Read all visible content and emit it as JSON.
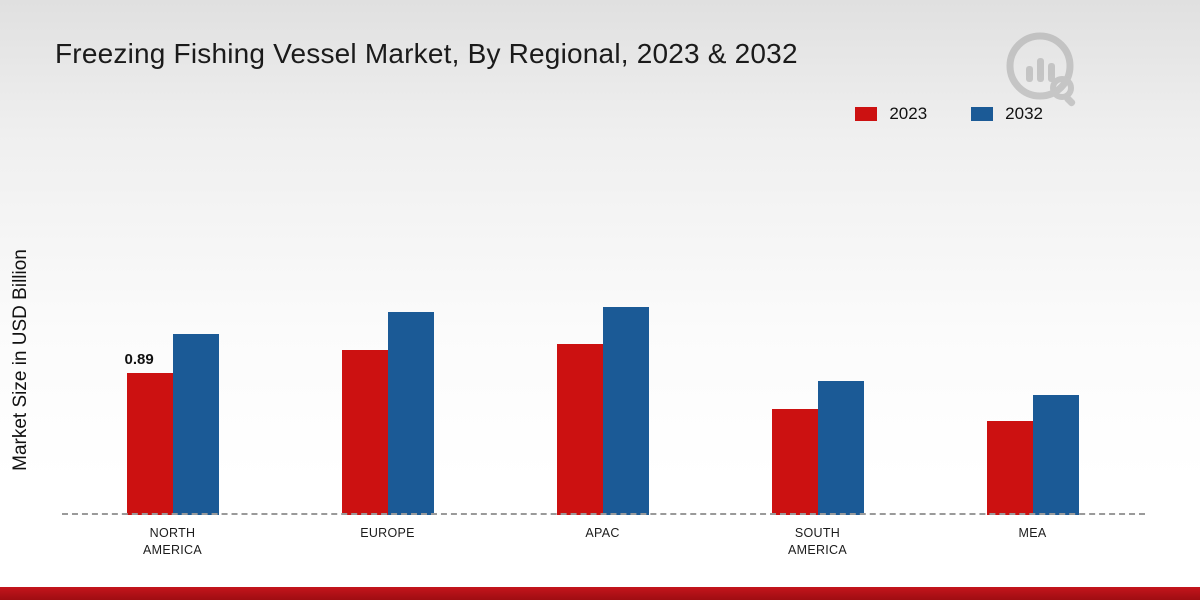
{
  "title": "Freezing Fishing Vessel Market, By Regional, 2023 & 2032",
  "ylabel": "Market Size in USD Billion",
  "legend": [
    {
      "label": "2023",
      "color": "#cc1111"
    },
    {
      "label": "2032",
      "color": "#1b5a96"
    }
  ],
  "chart_data": {
    "type": "bar",
    "categories": [
      "NORTH AMERICA",
      "EUROPE",
      "APAC",
      "SOUTH AMERICA",
      "MEA"
    ],
    "series": [
      {
        "name": "2023",
        "color": "#cc1111",
        "values": [
          0.89,
          1.03,
          1.07,
          0.66,
          0.59
        ]
      },
      {
        "name": "2032",
        "color": "#1b5a96",
        "values": [
          1.13,
          1.27,
          1.3,
          0.84,
          0.75
        ]
      }
    ],
    "annotations": [
      {
        "series": "2023",
        "category": "NORTH AMERICA",
        "text": "0.89"
      }
    ],
    "ylabel": "Market Size in USD Billion",
    "xlabel": "",
    "ylim": [
      0,
      1.4
    ],
    "grid": false,
    "legend_position": "top-right",
    "baseline_style": "dashed"
  },
  "footer": {
    "color": "#b01218"
  }
}
